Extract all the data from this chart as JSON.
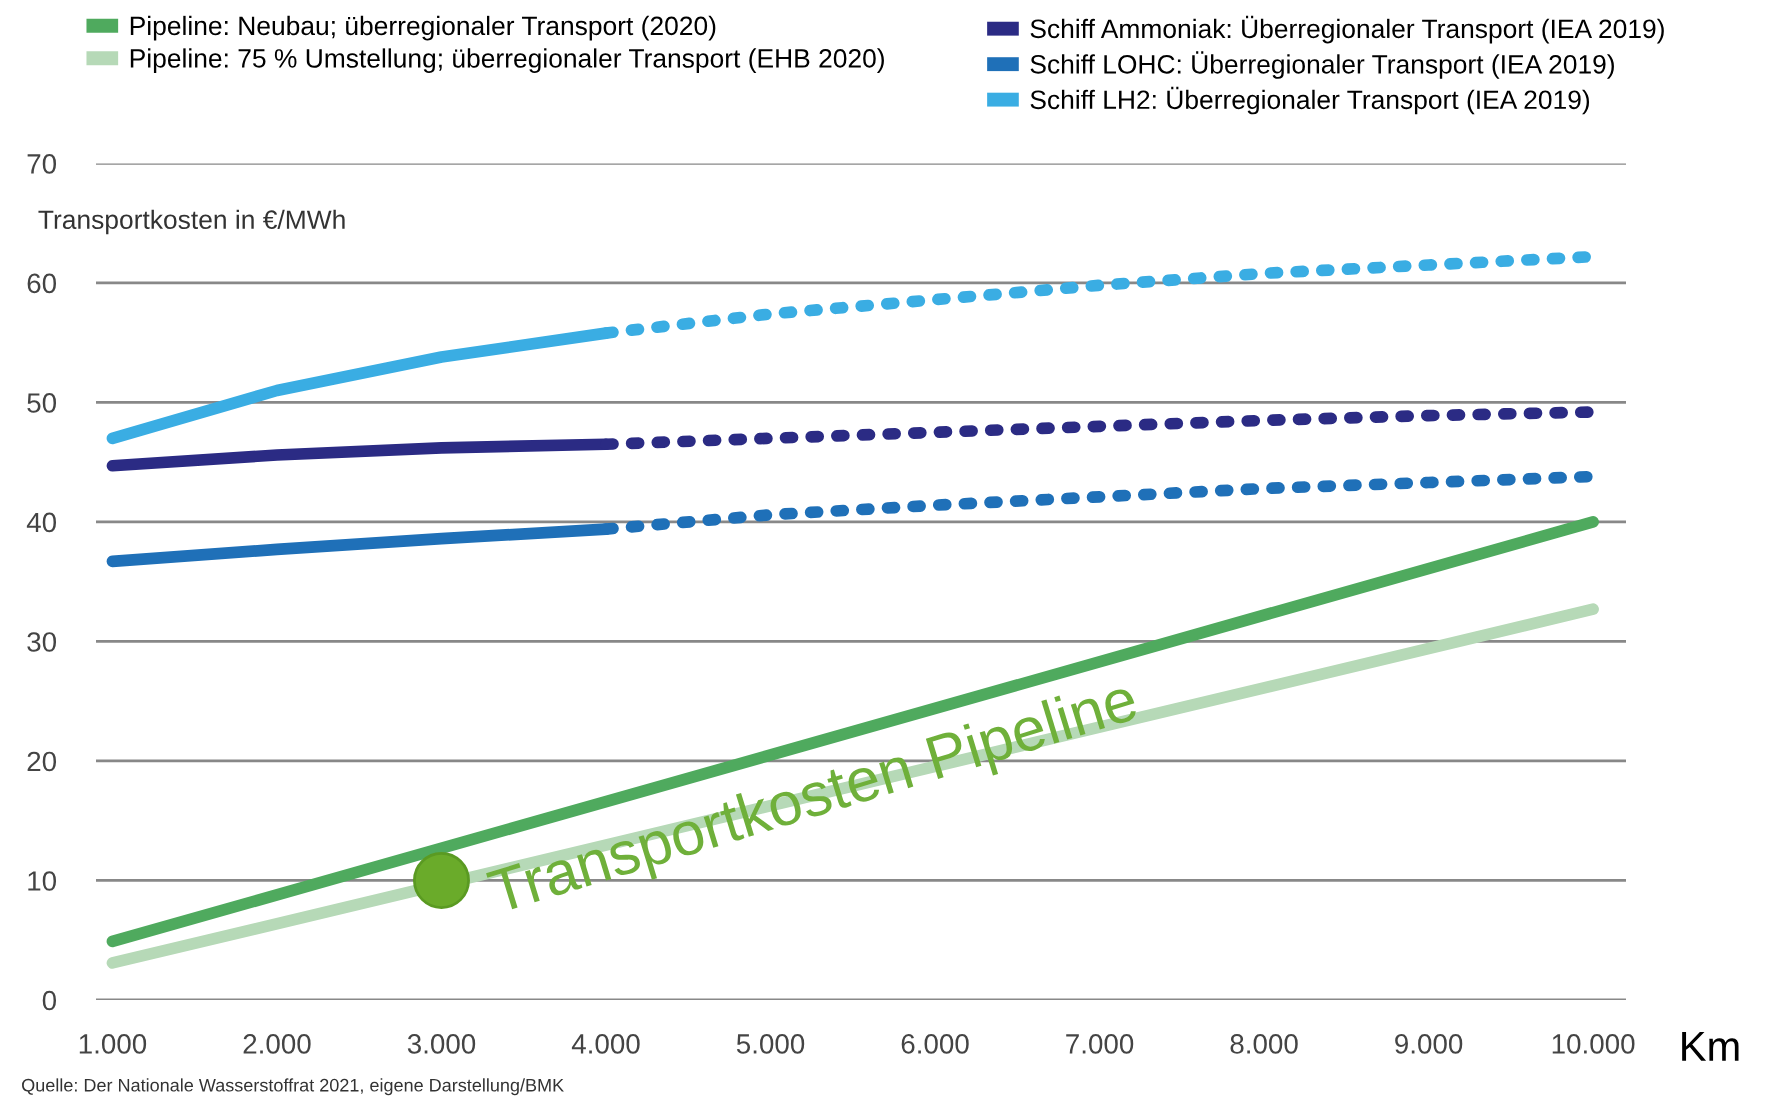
{
  "chart_data": {
    "type": "line",
    "ylabel": "Transportkosten in €/MWh",
    "xlabel": "Km",
    "xlim": [
      900,
      10200
    ],
    "xticks": [
      {
        "value": 1000,
        "label": "1.000"
      },
      {
        "value": 2000,
        "label": "2.000"
      },
      {
        "value": 3000,
        "label": "3.000"
      },
      {
        "value": 4000,
        "label": "4.000"
      },
      {
        "value": 5000,
        "label": "5.000"
      },
      {
        "value": 6000,
        "label": "6.000"
      },
      {
        "value": 7000,
        "label": "7.000"
      },
      {
        "value": 8000,
        "label": "8.000"
      },
      {
        "value": 9000,
        "label": "9.000"
      },
      {
        "value": 10000,
        "label": "10.000"
      }
    ],
    "ylim": [
      0,
      70
    ],
    "yticks": [
      0,
      10,
      20,
      30,
      40,
      50,
      60,
      70
    ],
    "grid": "y",
    "legend": "top",
    "marker": "none",
    "series": [
      {
        "name": "Pipeline: Neubau; überregionaler Transport (2020)",
        "color": "#4faa5e",
        "line_style": "solid",
        "x": [
          1000,
          10000
        ],
        "values": [
          4.9,
          40.0
        ]
      },
      {
        "name": "Pipeline: 75 % Umstellung; überregionaler Transport (EHB 2020)",
        "color": "#b6d9b7",
        "line_style": "solid",
        "x": [
          1000,
          10000
        ],
        "values": [
          3.1,
          32.7
        ]
      },
      {
        "name": "Schiff Ammoniak: Überregionaler Transport (IEA 2019)",
        "color": "#2b2b84",
        "line_style": "solid",
        "x": [
          1000,
          2000,
          3000,
          4000
        ],
        "values": [
          44.7,
          45.6,
          46.2,
          46.5
        ]
      },
      {
        "name": "Schiff LOHC: Überregionaler Transport (IEA 2019)",
        "color": "#1f70b8",
        "line_style": "solid",
        "x": [
          1000,
          2000,
          3000,
          4000
        ],
        "values": [
          36.7,
          37.7,
          38.6,
          39.4
        ]
      },
      {
        "name": "Schiff LH2: Überregionaler Transport (IEA 2019)",
        "color": "#3aade3",
        "line_style": "solid",
        "x": [
          1000,
          2000,
          3000,
          4000
        ],
        "values": [
          47.0,
          51.0,
          53.8,
          55.8
        ]
      },
      {
        "color": "#2b2b84",
        "line_style": "dotted",
        "x": [
          4000,
          5000,
          6000,
          7000,
          8000,
          9000,
          10000
        ],
        "values": [
          46.5,
          47.0,
          47.5,
          48.0,
          48.5,
          48.9,
          49.2
        ]
      },
      {
        "color": "#1f70b8",
        "line_style": "dotted",
        "x": [
          4000,
          5000,
          6000,
          7000,
          8000,
          9000,
          10000
        ],
        "values": [
          39.4,
          40.6,
          41.4,
          42.1,
          42.8,
          43.3,
          43.8
        ]
      },
      {
        "color": "#3aade3",
        "line_style": "dotted",
        "x": [
          4000,
          5000,
          6000,
          7000,
          8000,
          9000,
          10000
        ],
        "values": [
          55.8,
          57.4,
          58.6,
          59.8,
          60.8,
          61.5,
          62.2
        ]
      },
      {
        "type": "scatter",
        "color": "#6aab2a",
        "marker": "circle",
        "x": [
          3000
        ],
        "values": [
          10.0
        ]
      }
    ],
    "annotations": [
      {
        "text": "Transportkosten Pipeline",
        "x": 3000,
        "y": 10.0
      },
      "Quelle: Der Nationale Wasserstoffrat 2021, eigene Darstellung/BMK"
    ]
  }
}
